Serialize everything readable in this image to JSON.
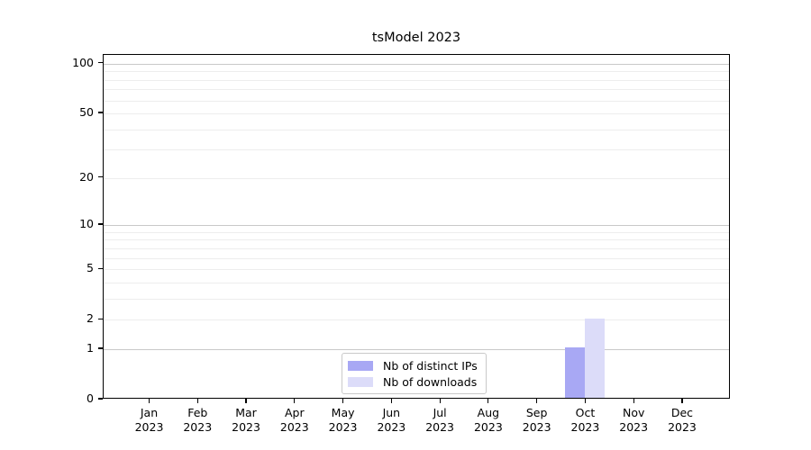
{
  "chart_data": {
    "type": "bar",
    "title": "tsModel 2023",
    "x": {
      "categories": [
        "Jan",
        "Feb",
        "Mar",
        "Apr",
        "May",
        "Jun",
        "Jul",
        "Aug",
        "Sep",
        "Oct",
        "Nov",
        "Dec"
      ],
      "year": "2023"
    },
    "series": [
      {
        "name": "Nb of distinct IPs",
        "color": "#a8a8f4",
        "values": [
          0,
          0,
          0,
          0,
          0,
          0,
          0,
          0,
          0,
          1,
          0,
          0
        ]
      },
      {
        "name": "Nb of downloads",
        "color": "#dcdcf9",
        "values": [
          0,
          0,
          0,
          0,
          0,
          0,
          0,
          0,
          0,
          2,
          0,
          0
        ]
      }
    ],
    "yscale": "log1p",
    "y_ticks": [
      0,
      1,
      2,
      5,
      10,
      20,
      50,
      100
    ],
    "y_minor_gridlines": [
      3,
      4,
      6,
      7,
      8,
      9,
      30,
      40,
      60,
      70,
      80,
      90
    ],
    "ylim": [
      0,
      113
    ],
    "xlabel": "",
    "ylabel": "",
    "grid": true,
    "legend": {
      "position": "lower center",
      "items": [
        "Nb of distinct IPs",
        "Nb of downloads"
      ]
    }
  },
  "colors": {
    "spine": "#000000",
    "text": "#000000",
    "major_grid": "#c9c9c9",
    "minor_grid": "#ededed",
    "legend_border": "#c9c9c9",
    "background": "#ffffff"
  }
}
